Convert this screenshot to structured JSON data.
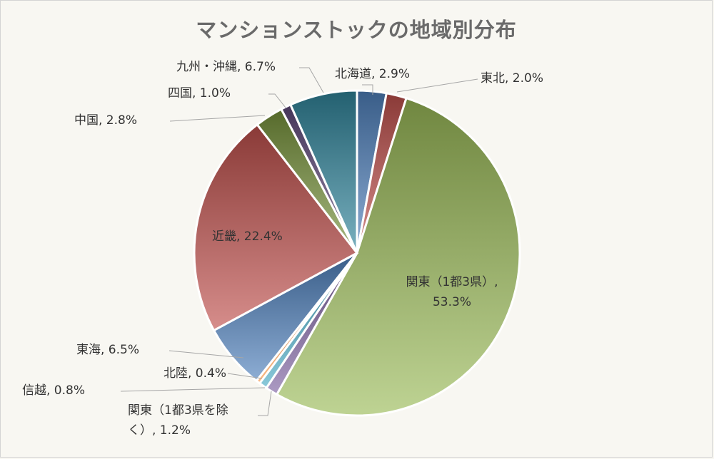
{
  "chart_data": {
    "type": "pie",
    "title": "マンションストックの地域別分布",
    "unit": "%",
    "slices": [
      {
        "label": "北海道",
        "value": 2.9,
        "display": "北海道, 2.9%",
        "color": "#4f81bd"
      },
      {
        "label": "東北",
        "value": 2.0,
        "display": "東北, 2.0%",
        "color": "#c0504d"
      },
      {
        "label": "関東（1都3県）",
        "value": 53.3,
        "display": [
          "関東（1都3県）,",
          "53.3%"
        ],
        "color": "#9bbb59"
      },
      {
        "label": "関東（1都3県を除く）",
        "value": 1.2,
        "display": [
          "関東（1都3県を除",
          "く）, 1.2%"
        ],
        "color": "#8064a2"
      },
      {
        "label": "信越",
        "value": 0.8,
        "display": "信越, 0.8%",
        "color": "#4bacc6"
      },
      {
        "label": "北陸",
        "value": 0.4,
        "display": "北陸, 0.4%",
        "color": "#f79646"
      },
      {
        "label": "東海",
        "value": 6.5,
        "display": "東海, 6.5%",
        "color": "#4f81bd"
      },
      {
        "label": "近畿",
        "value": 22.4,
        "display": "近畿, 22.4%",
        "color": "#c0504d"
      },
      {
        "label": "中国",
        "value": 2.8,
        "display": "中国, 2.8%",
        "color": "#77933c"
      },
      {
        "label": "四国",
        "value": 1.0,
        "display": "四国, 1.0%",
        "color": "#604a7b"
      },
      {
        "label": "九州・沖縄",
        "value": 6.7,
        "display": "九州・沖縄, 6.7%",
        "color": "#31859c"
      }
    ]
  }
}
